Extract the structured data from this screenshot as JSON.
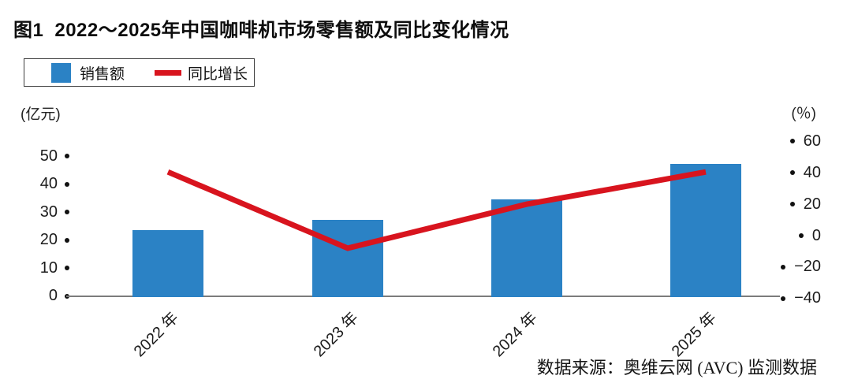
{
  "header": {
    "figure_label": "图1",
    "title": "2022～2025年中国咖啡机市场零售额及同比变化情况"
  },
  "legend": {
    "items": [
      {
        "label": "销售额",
        "swatch": "bar",
        "color": "#2B82C5"
      },
      {
        "label": "同比增长",
        "swatch": "line",
        "color": "#D8141E"
      }
    ]
  },
  "chart_data": {
    "type": "bar",
    "title": "图1 2022～2025年中国咖啡机市场零售额及同比变化情况",
    "categories": [
      "2022 年",
      "2023 年",
      "2024 年",
      "2025 年"
    ],
    "series": [
      {
        "name": "销售额",
        "type": "bar",
        "axis": "left",
        "unit": "亿元",
        "color": "#2B82C5",
        "values": [
          24,
          27.5,
          35,
          47.5
        ]
      },
      {
        "name": "同比增长",
        "type": "line",
        "axis": "right",
        "unit": "%",
        "color": "#D8141E",
        "values": [
          40.5,
          -8,
          20,
          40.5
        ]
      }
    ],
    "left_axis": {
      "unit_label": "(亿元)",
      "ticks": [
        50,
        40,
        30,
        20,
        10,
        0
      ],
      "range": [
        0,
        50
      ]
    },
    "right_axis": {
      "unit_label": "(％)",
      "ticks": [
        60,
        40,
        20,
        0,
        -20,
        -40
      ],
      "range": [
        -40,
        60
      ]
    },
    "grid": false,
    "legend_position": "top-left",
    "source": "数据来源：奥维云网 (AVC) 监测数据"
  },
  "footer": {
    "source": "数据来源：奥维云网 (AVC) 监测数据"
  }
}
